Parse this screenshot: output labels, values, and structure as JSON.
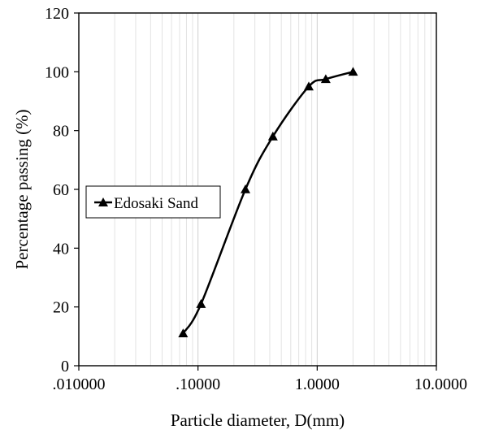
{
  "chart_data": {
    "type": "line",
    "xlabel": "Particle diameter, D(mm)",
    "ylabel": "Percentage passing (%)",
    "x_scale": "log",
    "xlim": [
      0.01,
      10
    ],
    "ylim": [
      0,
      120
    ],
    "x_ticks": [
      {
        "value": 0.01,
        "label": ".010000"
      },
      {
        "value": 0.1,
        "label": ".10000"
      },
      {
        "value": 1,
        "label": "1.0000"
      },
      {
        "value": 10,
        "label": "10.0000"
      }
    ],
    "y_ticks": [
      0,
      20,
      40,
      60,
      80,
      100,
      120
    ],
    "grid": {
      "vertical_minor": true,
      "horizontal": false
    },
    "legend": {
      "position": "middle-left",
      "entries": [
        "Edosaki Sand"
      ]
    },
    "series": [
      {
        "name": "Edosaki Sand",
        "marker": "triangle",
        "color": "#000000",
        "x": [
          0.075,
          0.106,
          0.25,
          0.425,
          0.85,
          1.18,
          2.0
        ],
        "y": [
          11,
          21,
          60,
          78,
          95,
          97.5,
          100
        ]
      }
    ]
  }
}
